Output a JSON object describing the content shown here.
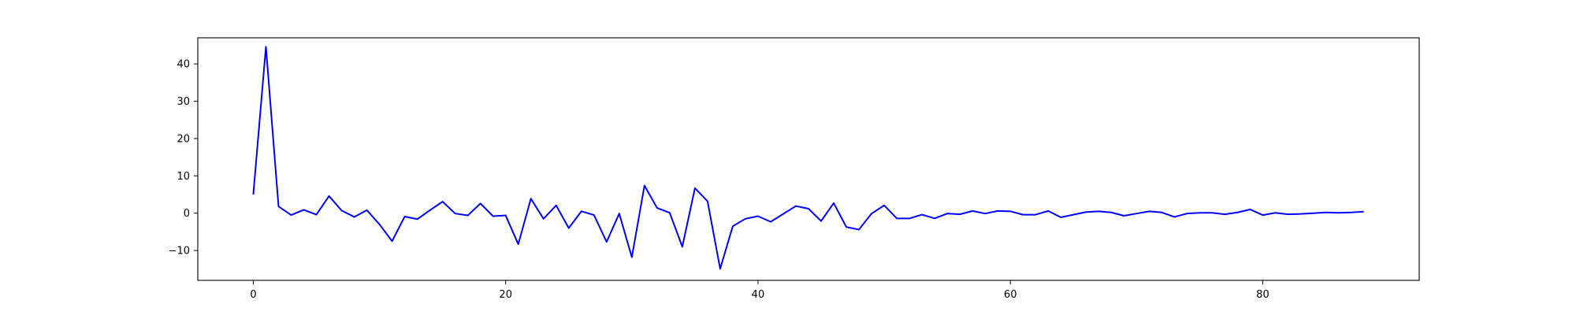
{
  "chart_data": {
    "type": "line",
    "title": "",
    "xlabel": "",
    "ylabel": "",
    "xlim": [
      -4.4,
      92.4
    ],
    "ylim": [
      -18.0,
      47.0
    ],
    "xticks": [
      0,
      20,
      40,
      60,
      80
    ],
    "yticks": [
      -10,
      0,
      10,
      20,
      30,
      40
    ],
    "xtick_labels": [
      "0",
      "20",
      "40",
      "60",
      "80"
    ],
    "ytick_labels": [
      "−10",
      "0",
      "10",
      "20",
      "30",
      "40"
    ],
    "grid": false,
    "legend": "none",
    "series": [
      {
        "color": "#0000ff",
        "x": [
          0,
          1,
          2,
          3,
          4,
          5,
          6,
          7,
          8,
          9,
          10,
          11,
          12,
          13,
          14,
          15,
          16,
          17,
          18,
          19,
          20,
          21,
          22,
          23,
          24,
          25,
          26,
          27,
          28,
          29,
          30,
          31,
          32,
          33,
          34,
          35,
          36,
          37,
          38,
          39,
          40,
          41,
          42,
          43,
          44,
          45,
          46,
          47,
          48,
          49,
          50,
          51,
          52,
          53,
          54,
          55,
          56,
          57,
          58,
          59,
          60,
          61,
          62,
          63,
          64,
          65,
          66,
          67,
          68,
          69,
          70,
          71,
          72,
          73,
          74,
          75,
          76,
          77,
          78,
          79,
          80,
          81,
          82,
          83,
          84,
          85,
          86,
          87,
          88
        ],
        "y": [
          5.0,
          44.6,
          1.8,
          -0.5,
          0.9,
          -0.4,
          4.6,
          0.7,
          -1.0,
          0.8,
          -3.0,
          -7.5,
          -0.9,
          -1.6,
          0.8,
          3.1,
          -0.1,
          -0.6,
          2.6,
          -0.8,
          -0.6,
          -8.3,
          3.9,
          -1.5,
          2.1,
          -4.0,
          0.5,
          -0.5,
          -7.7,
          -0.1,
          -11.8,
          7.4,
          1.4,
          0.1,
          -9.0,
          6.7,
          3.2,
          -14.9,
          -3.5,
          -1.5,
          -0.8,
          -2.3,
          -0.2,
          1.9,
          1.2,
          -2.1,
          2.7,
          -3.7,
          -4.4,
          -0.1,
          2.1,
          -1.4,
          -1.4,
          -0.4,
          -1.4,
          -0.1,
          -0.3,
          0.6,
          -0.1,
          0.6,
          0.5,
          -0.4,
          -0.4,
          0.6,
          -1.1,
          -0.4,
          0.3,
          0.5,
          0.2,
          -0.7,
          -0.1,
          0.5,
          0.2,
          -1.0,
          -0.1,
          0.1,
          0.1,
          -0.3,
          0.2,
          1.0,
          -0.5,
          0.1,
          -0.3,
          -0.2,
          0.0,
          0.2,
          0.1,
          0.2,
          0.4
        ]
      }
    ]
  }
}
